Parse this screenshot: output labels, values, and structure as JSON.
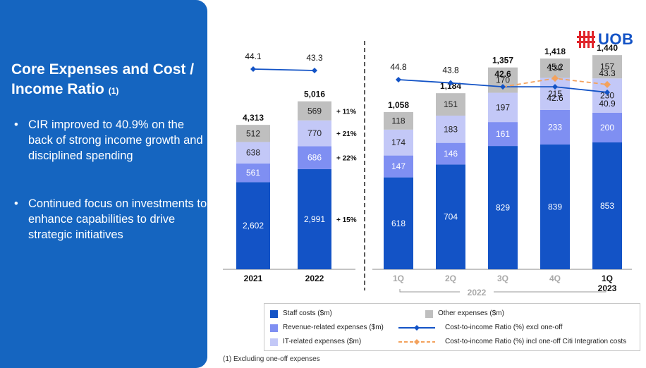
{
  "sidebar": {
    "title": "Core Expenses and Cost / Income Ratio",
    "title_sup": "(1)",
    "bullets": [
      "CIR improved to 40.9% on the back of strong income growth and disciplined spending",
      "Continued focus on investments to enhance capabilities to drive strategic initiatives"
    ]
  },
  "logo": {
    "text": "UOB"
  },
  "footnote": "(1) Excluding one-off expenses",
  "colors": {
    "sidebar_bg": "#1565c0",
    "staff": "#1353c6",
    "revenue": "#7f8ff2",
    "it": "#c3c8f7",
    "other": "#bfbfbf",
    "cir_line": "#1353c6",
    "cir_oneoff_line": "#f3a25d",
    "logo_red": "#e0262c"
  },
  "chart_data": {
    "type": "bar",
    "stacked": true,
    "categories": [
      "2021",
      "2022",
      "1Q",
      "2Q",
      "3Q",
      "4Q",
      "1Q 2023"
    ],
    "category_labels": [
      [
        "2021"
      ],
      [
        "2022"
      ],
      [
        "1Q"
      ],
      [
        "2Q"
      ],
      [
        "3Q"
      ],
      [
        "4Q"
      ],
      [
        "1Q",
        "2023"
      ]
    ],
    "group_label": "2022",
    "series": [
      {
        "name": "Staff costs ($m)",
        "values": [
          2602,
          2991,
          618,
          704,
          829,
          839,
          853
        ]
      },
      {
        "name": "Revenue-related expenses ($m)",
        "values": [
          561,
          686,
          147,
          146,
          161,
          233,
          200
        ]
      },
      {
        "name": "IT-related expenses ($m)",
        "values": [
          638,
          770,
          174,
          183,
          197,
          215,
          230
        ]
      },
      {
        "name": "Other expenses ($m)",
        "values": [
          512,
          569,
          118,
          151,
          170,
          130,
          157
        ]
      }
    ],
    "totals": [
      4313,
      5016,
      1058,
      1184,
      1357,
      1418,
      1440
    ],
    "growth_labels": [
      "+ 15%",
      "+ 22%",
      "+ 21%",
      "+ 11%"
    ],
    "lines": [
      {
        "name": "Cost-to-income Ratio (%) excl one-off",
        "values": [
          44.1,
          43.3,
          44.8,
          43.8,
          42.6,
          42.6,
          40.9
        ]
      },
      {
        "name": "Cost-to-income Ratio (%) incl one-off Citi Integration costs",
        "x_indices": [
          4,
          5,
          6
        ],
        "values": [
          42.6,
          45.2,
          43.3
        ]
      }
    ],
    "legend_placement": "bottom"
  }
}
